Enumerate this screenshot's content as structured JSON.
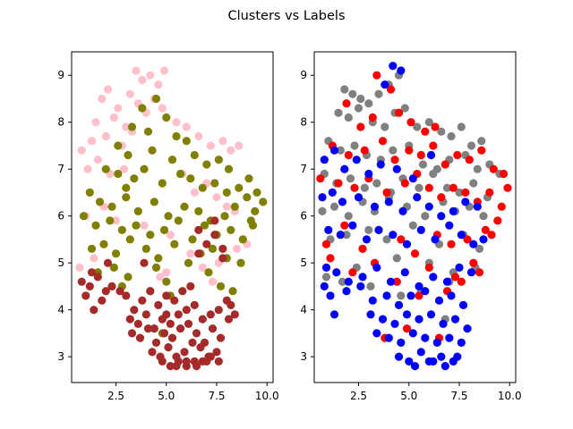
{
  "figure": {
    "suptitle": "Clusters vs Labels"
  },
  "colors": {
    "pink": "#ffc0cb",
    "olive": "#808000",
    "brown": "#a52a2a",
    "gray": "#808080",
    "red": "#ff0000",
    "blue": "#0000ff"
  },
  "chart_data": [
    {
      "type": "scatter",
      "title": "",
      "xlabel": "",
      "ylabel": "",
      "xlim": [
        0.3,
        10.3
      ],
      "ylim": [
        2.45,
        9.5
      ],
      "xticks": [
        2.5,
        5.0,
        7.5,
        10.0
      ],
      "xtick_labels": [
        "2.5",
        "5.0",
        "7.5",
        "10.0"
      ],
      "yticks": [
        3,
        4,
        5,
        6,
        7,
        8,
        9
      ],
      "ytick_labels": [
        "3",
        "4",
        "5",
        "6",
        "7",
        "8",
        "9"
      ],
      "grid": false,
      "series": [
        {
          "color": "#ffc0cb",
          "x": [
            1.8,
            2.1,
            2.6,
            3.2,
            3.5,
            3.8,
            4.2,
            4.6,
            4.9,
            1.5,
            2.4,
            3.0,
            3.6,
            4.0,
            1.3,
            2.0,
            2.8,
            3.3,
            4.4,
            4.8,
            5.5,
            6.0,
            6.6,
            7.2,
            7.8,
            8.2,
            8.6,
            0.8,
            1.1,
            1.6,
            2.2,
            2.9,
            5.8,
            6.4,
            7.0,
            7.5,
            8.0,
            8.4,
            1.0,
            1.9,
            2.5,
            3.9,
            5.2,
            6.2,
            7.6,
            8.8,
            0.7,
            1.4,
            5.0,
            6.8,
            7.3,
            8.5,
            9.0,
            4.7
          ],
          "y": [
            8.5,
            8.7,
            8.3,
            8.6,
            9.1,
            8.9,
            9.0,
            8.8,
            9.1,
            8.0,
            8.1,
            7.9,
            8.4,
            8.2,
            7.6,
            7.7,
            7.5,
            7.8,
            8.5,
            8.3,
            8.0,
            7.9,
            7.7,
            7.5,
            7.6,
            7.4,
            7.5,
            7.4,
            7.0,
            7.2,
            6.9,
            7.0,
            6.9,
            6.5,
            6.7,
            6.4,
            6.2,
            6.1,
            6.0,
            6.2,
            5.9,
            5.8,
            5.6,
            5.2,
            5.0,
            5.5,
            4.9,
            5.1,
            4.8,
            4.9,
            4.6,
            5.3,
            5.4,
            4.7
          ]
        },
        {
          "color": "#808000",
          "x": [
            3.8,
            4.5,
            5.0,
            3.3,
            4.1,
            5.5,
            6.0,
            2.6,
            3.1,
            4.3,
            5.3,
            6.4,
            7.0,
            7.6,
            8.1,
            2.0,
            2.6,
            3.4,
            3.9,
            4.8,
            5.7,
            6.2,
            6.8,
            7.4,
            8.0,
            8.6,
            9.1,
            1.2,
            1.7,
            2.3,
            3.0,
            3.6,
            4.4,
            5.1,
            5.9,
            6.6,
            7.2,
            7.9,
            8.4,
            9.0,
            9.5,
            0.9,
            1.5,
            2.2,
            2.8,
            3.5,
            4.2,
            4.9,
            5.6,
            6.3,
            6.9,
            7.5,
            8.2,
            8.8,
            9.4,
            9.8,
            1.3,
            1.9,
            2.5,
            3.2,
            4.0,
            4.6,
            5.4,
            6.1,
            6.7,
            7.3,
            8.0,
            8.7,
            9.3,
            1.6,
            2.4,
            3.1,
            4.5,
            5.0,
            7.1,
            7.7,
            8.3,
            2.8,
            4.2,
            5.2,
            9.2,
            3.0,
            4.8
          ],
          "y": [
            8.3,
            8.5,
            8.1,
            7.9,
            7.8,
            7.7,
            7.6,
            7.5,
            7.3,
            7.4,
            7.2,
            7.3,
            7.1,
            7.2,
            7.0,
            7.0,
            6.9,
            6.8,
            7.0,
            6.7,
            6.9,
            6.8,
            6.6,
            6.7,
            6.5,
            6.6,
            6.8,
            6.5,
            6.3,
            6.2,
            6.4,
            6.1,
            6.3,
            6.0,
            6.2,
            6.1,
            5.9,
            6.0,
            6.2,
            6.4,
            6.5,
            6.0,
            5.8,
            5.9,
            5.7,
            5.8,
            5.6,
            5.7,
            5.9,
            5.5,
            5.8,
            5.6,
            5.7,
            5.5,
            6.1,
            6.3,
            5.3,
            5.4,
            5.2,
            5.5,
            5.3,
            5.1,
            5.4,
            5.0,
            5.2,
            5.3,
            5.1,
            5.0,
            5.8,
            4.8,
            4.9,
            4.7,
            4.9,
            4.6,
            4.8,
            4.5,
            4.4,
            4.5,
            4.4,
            4.3,
            5.9,
            6.6,
            3.5
          ]
        },
        {
          "color": "#a52a2a",
          "x": [
            0.8,
            1.2,
            1.6,
            2.0,
            1.0,
            1.4,
            1.8,
            2.3,
            2.7,
            1.3,
            2.1,
            3.0,
            3.4,
            3.8,
            4.2,
            4.6,
            5.0,
            5.4,
            5.8,
            6.2,
            6.6,
            7.0,
            7.4,
            7.8,
            3.2,
            3.6,
            4.0,
            4.4,
            4.8,
            5.2,
            5.6,
            6.0,
            6.4,
            6.8,
            7.2,
            7.6,
            8.0,
            3.3,
            3.7,
            4.1,
            4.5,
            4.9,
            5.3,
            5.7,
            6.1,
            6.5,
            6.9,
            7.3,
            7.7,
            8.1,
            8.4,
            4.3,
            4.7,
            5.1,
            5.5,
            5.9,
            6.3,
            6.7,
            7.1,
            7.5,
            4.8,
            5.2,
            5.6,
            6.0,
            6.4,
            6.8,
            7.2,
            7.6,
            5.5,
            6.0,
            6.5,
            7.0,
            5.0,
            6.6,
            7.4,
            7.8,
            8.2,
            3.9
          ],
          "y": [
            4.6,
            4.5,
            4.7,
            4.4,
            4.3,
            4.0,
            4.2,
            4.5,
            4.4,
            4.8,
            5.0,
            4.3,
            4.0,
            4.2,
            4.4,
            4.1,
            4.3,
            4.2,
            4.4,
            4.5,
            5.2,
            5.4,
            5.6,
            5.3,
            3.8,
            3.7,
            3.9,
            3.6,
            3.8,
            3.7,
            3.9,
            4.0,
            4.1,
            3.8,
            3.9,
            4.0,
            4.2,
            3.5,
            3.4,
            3.6,
            3.3,
            3.5,
            3.4,
            3.6,
            3.7,
            3.5,
            3.3,
            3.6,
            3.4,
            3.8,
            3.9,
            3.1,
            3.0,
            3.2,
            3.0,
            3.1,
            3.3,
            3.2,
            3.0,
            3.1,
            2.9,
            2.8,
            2.9,
            2.8,
            2.9,
            2.9,
            3.0,
            2.9,
            2.8,
            2.9,
            2.8,
            2.9,
            3.9,
            5.7,
            5.9,
            5.1,
            4.1,
            5.0
          ]
        }
      ]
    },
    {
      "type": "scatter",
      "title": "",
      "xlabel": "",
      "ylabel": "",
      "xlim": [
        0.3,
        10.3
      ],
      "ylim": [
        2.45,
        9.5
      ],
      "xticks": [
        2.5,
        5.0,
        7.5,
        10.0
      ],
      "xtick_labels": [
        "2.5",
        "5.0",
        "7.5",
        "10.0"
      ],
      "yticks": [
        3,
        4,
        5,
        6,
        7,
        8,
        9
      ],
      "ytick_labels": [
        "3",
        "4",
        "5",
        "6",
        "7",
        "8",
        "9"
      ],
      "grid": false,
      "series": [
        {
          "color": "#808080",
          "x": [
            1.8,
            2.2,
            2.6,
            3.0,
            3.5,
            4.0,
            4.5,
            1.5,
            2.0,
            2.5,
            3.2,
            3.8,
            4.3,
            4.8,
            5.4,
            6.0,
            6.6,
            7.1,
            7.6,
            8.1,
            8.6,
            1.0,
            1.6,
            2.3,
            2.9,
            3.6,
            4.2,
            5.0,
            5.7,
            6.4,
            7.0,
            7.8,
            8.4,
            9.0,
            9.5,
            0.8,
            1.4,
            2.1,
            2.8,
            3.4,
            4.1,
            4.7,
            5.5,
            6.2,
            6.9,
            7.5,
            8.2,
            8.9,
            0.7,
            1.3,
            2.0,
            2.7,
            3.3,
            4.0,
            4.9,
            5.8,
            6.7,
            7.3,
            8.0,
            8.7,
            1.1,
            1.9,
            3.0,
            3.9,
            5.2,
            6.5,
            7.7,
            8.5,
            2.4,
            4.4,
            6.0,
            7.2,
            0.9,
            1.7,
            3.1,
            5.6,
            7.0,
            8.3,
            4.6,
            6.8
          ],
          "y": [
            8.7,
            8.6,
            8.5,
            8.4,
            8.6,
            8.8,
            9.0,
            8.2,
            8.1,
            8.3,
            8.0,
            7.9,
            8.2,
            8.3,
            7.9,
            8.0,
            7.8,
            7.7,
            7.9,
            7.5,
            7.6,
            7.6,
            7.4,
            7.5,
            7.3,
            7.2,
            7.4,
            7.5,
            7.1,
            7.0,
            7.2,
            7.3,
            7.0,
            7.1,
            6.9,
            6.9,
            6.7,
            6.8,
            6.6,
            6.7,
            6.5,
            6.8,
            6.6,
            6.9,
            6.6,
            6.5,
            6.7,
            6.4,
            6.1,
            6.2,
            6.0,
            6.3,
            6.1,
            6.4,
            6.2,
            6.0,
            6.3,
            6.1,
            6.2,
            6.0,
            5.5,
            5.6,
            5.7,
            5.5,
            5.8,
            5.4,
            5.6,
            5.3,
            4.9,
            5.1,
            5.0,
            4.8,
            4.7,
            4.6,
            4.5,
            4.4,
            4.6,
            4.9,
            4.3,
            3.8
          ]
        },
        {
          "color": "#ff0000",
          "x": [
            3.4,
            4.1,
            1.9,
            2.6,
            3.2,
            4.5,
            5.1,
            5.8,
            6.3,
            1.2,
            2.0,
            2.8,
            3.7,
            4.3,
            5.0,
            5.6,
            6.2,
            6.8,
            7.4,
            8.0,
            8.6,
            9.2,
            9.7,
            0.6,
            1.5,
            2.3,
            3.0,
            3.9,
            4.8,
            5.4,
            6.0,
            6.6,
            7.2,
            7.8,
            8.4,
            9.0,
            9.6,
            9.9,
            0.9,
            1.8,
            2.7,
            3.5,
            4.6,
            5.3,
            6.4,
            7.1,
            7.9,
            8.8,
            9.4,
            1.1,
            2.2,
            3.3,
            4.4,
            6.0,
            7.3,
            8.2,
            9.1,
            5.5,
            6.9,
            7.6,
            8.5,
            4.9,
            6.5,
            3.8
          ],
          "y": [
            9.0,
            8.7,
            8.4,
            7.9,
            8.1,
            8.2,
            8.0,
            7.8,
            7.9,
            7.5,
            7.3,
            7.4,
            7.6,
            7.2,
            7.4,
            7.3,
            7.5,
            7.1,
            7.3,
            7.2,
            7.4,
            7.0,
            6.9,
            6.8,
            6.7,
            6.6,
            6.8,
            6.5,
            6.7,
            6.9,
            6.6,
            6.4,
            6.6,
            6.5,
            6.3,
            6.5,
            6.2,
            6.6,
            5.4,
            5.8,
            5.3,
            5.7,
            5.5,
            5.2,
            5.6,
            5.4,
            5.5,
            5.7,
            5.9,
            5.1,
            4.8,
            5.0,
            4.6,
            4.9,
            4.7,
            5.0,
            5.6,
            4.3,
            4.4,
            4.6,
            4.8,
            3.6,
            3.4,
            3.4
          ]
        },
        {
          "color": "#0000ff",
          "x": [
            4.2,
            4.6,
            3.8,
            0.8,
            1.3,
            1.8,
            2.4,
            3.0,
            3.6,
            4.4,
            5.2,
            6.1,
            0.7,
            1.2,
            1.7,
            2.5,
            3.3,
            4.0,
            4.7,
            5.4,
            6.0,
            6.6,
            7.2,
            7.8,
            8.4,
            1.0,
            1.6,
            2.2,
            2.9,
            3.5,
            4.2,
            4.9,
            5.6,
            6.3,
            7.0,
            7.6,
            8.2,
            8.7,
            0.9,
            1.4,
            2.0,
            2.7,
            3.4,
            4.1,
            4.8,
            5.5,
            6.2,
            6.9,
            7.5,
            8.1,
            1.1,
            1.9,
            2.6,
            3.2,
            3.9,
            4.5,
            5.1,
            5.8,
            6.5,
            7.1,
            7.7,
            3.1,
            3.7,
            4.3,
            4.9,
            5.5,
            6.1,
            6.7,
            7.3,
            7.9,
            3.4,
            4.0,
            4.6,
            5.2,
            5.8,
            6.4,
            7.0,
            7.6,
            4.5,
            5.0,
            5.6,
            6.2,
            6.8,
            7.4,
            5.3,
            6.0,
            6.6,
            7.2,
            1.3,
            0.8
          ],
          "y": [
            9.2,
            9.1,
            8.8,
            7.2,
            7.4,
            7.0,
            7.2,
            6.9,
            7.1,
            7.0,
            6.8,
            7.3,
            6.4,
            6.5,
            6.3,
            6.4,
            6.2,
            6.3,
            6.1,
            6.4,
            6.2,
            6.0,
            6.1,
            6.3,
            6.2,
            5.7,
            5.6,
            5.8,
            5.5,
            5.7,
            5.6,
            5.4,
            5.7,
            5.5,
            5.8,
            5.6,
            5.4,
            5.5,
            4.9,
            4.8,
            4.6,
            4.7,
            4.9,
            4.6,
            4.8,
            4.5,
            4.7,
            4.6,
            4.9,
            4.8,
            4.3,
            4.4,
            4.5,
            4.2,
            4.3,
            4.1,
            4.3,
            4.4,
            4.2,
            4.3,
            4.1,
            3.9,
            3.8,
            3.7,
            3.9,
            3.8,
            3.9,
            3.7,
            3.8,
            3.6,
            3.5,
            3.4,
            3.3,
            3.5,
            3.4,
            3.3,
            3.4,
            3.3,
            3.0,
            2.9,
            3.1,
            2.9,
            2.8,
            3.0,
            2.8,
            2.9,
            3.0,
            2.9,
            3.9,
            4.5
          ]
        }
      ]
    }
  ]
}
